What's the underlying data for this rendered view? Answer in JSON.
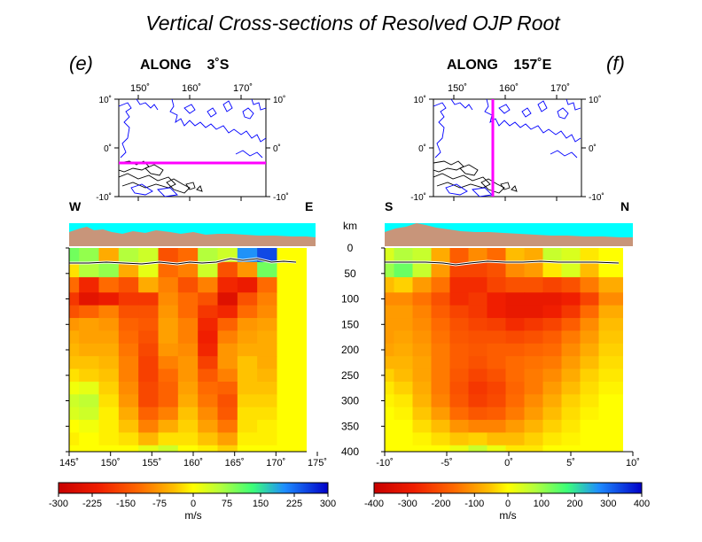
{
  "title": "Vertical Cross-sections of Resolved OJP Root",
  "panels": [
    {
      "letter": "(e)",
      "heading": "ALONG    3˚S",
      "inset": {
        "top_ticks": [
          "150˚",
          "160˚",
          "170˚"
        ],
        "left_ticks": [
          "10˚",
          "0˚",
          "-10˚"
        ],
        "right_ticks": [
          "10˚",
          "0˚",
          "-10˚"
        ],
        "profile_line": "horizontal",
        "line_color": "#ff00ff"
      },
      "side_left": "W",
      "side_right": "E",
      "bottom_ticks": [
        "145˚",
        "150˚",
        "155˚",
        "160˚",
        "165˚",
        "170˚",
        "175˚"
      ],
      "colorbar": {
        "ticks": [
          "-300",
          "-225",
          "-150",
          "-75",
          "0",
          "75",
          "150",
          "225",
          "300"
        ],
        "unit": "m/s"
      }
    },
    {
      "letter": "(f)",
      "heading": "ALONG    157˚E",
      "inset": {
        "top_ticks": [
          "150˚",
          "160˚",
          "170˚"
        ],
        "left_ticks": [
          "10˚",
          "0˚",
          "-10˚"
        ],
        "right_ticks": [
          "10˚",
          "0˚",
          "-10˚"
        ],
        "profile_line": "vertical",
        "line_color": "#ff00ff"
      },
      "side_left": "S",
      "side_right": "N",
      "bottom_ticks": [
        "-10˚",
        "-5˚",
        "0˚",
        "5˚",
        "10˚"
      ],
      "colorbar": {
        "ticks": [
          "-400",
          "-300",
          "-200",
          "-100",
          "0",
          "100",
          "200",
          "300",
          "400"
        ],
        "unit": "m/s"
      }
    }
  ],
  "depth_axis": {
    "unit": "km",
    "ticks": [
      "0",
      "50",
      "100",
      "150",
      "200",
      "250",
      "300",
      "350",
      "400"
    ]
  },
  "chart_data": [
    {
      "type": "heatmap",
      "name": "e",
      "x": [
        145,
        147.5,
        150,
        152.5,
        155,
        157.5,
        160,
        162.5,
        165,
        167.5,
        170,
        172.5
      ],
      "y": [
        15,
        40,
        75,
        100,
        125,
        150,
        175,
        200,
        225,
        250,
        275,
        300,
        325,
        350,
        375,
        400
      ],
      "xlim": [
        145,
        175
      ],
      "ylim": [
        0,
        400
      ],
      "clim": [
        -300,
        300
      ],
      "values": [
        [
          100,
          80,
          -60,
          60,
          40,
          -150,
          -120,
          60,
          40,
          200,
          250,
          0
        ],
        [
          -20,
          60,
          80,
          -60,
          20,
          -120,
          -100,
          40,
          -150,
          -80,
          100,
          0
        ],
        [
          -120,
          -200,
          -120,
          -150,
          -60,
          -100,
          -150,
          -100,
          -200,
          -220,
          -120,
          0
        ],
        [
          -180,
          -240,
          -220,
          -180,
          -180,
          -90,
          -120,
          -150,
          -250,
          -150,
          -100,
          0
        ],
        [
          -150,
          -130,
          -100,
          -150,
          -150,
          -80,
          -120,
          -180,
          -200,
          -120,
          -90,
          0
        ],
        [
          -80,
          -70,
          -80,
          -130,
          -140,
          -70,
          -100,
          -200,
          -130,
          -80,
          -70,
          0
        ],
        [
          -60,
          -70,
          -70,
          -120,
          -150,
          -70,
          -100,
          -210,
          -100,
          -70,
          -60,
          0
        ],
        [
          -50,
          -60,
          -60,
          -110,
          -160,
          -80,
          -90,
          -200,
          -80,
          -60,
          -60,
          0
        ],
        [
          -40,
          -40,
          -50,
          -100,
          -170,
          -100,
          -80,
          -170,
          -80,
          -40,
          -60,
          0
        ],
        [
          -20,
          -30,
          -40,
          -100,
          -170,
          -120,
          -80,
          -140,
          -100,
          -40,
          -50,
          0
        ],
        [
          10,
          20,
          -30,
          -90,
          -160,
          -130,
          -70,
          -120,
          -130,
          -40,
          -40,
          0
        ],
        [
          40,
          50,
          -20,
          -80,
          -160,
          -130,
          -60,
          -110,
          -150,
          -30,
          -30,
          0
        ],
        [
          30,
          40,
          -10,
          -60,
          -130,
          -100,
          -40,
          -90,
          -140,
          -20,
          -20,
          0
        ],
        [
          0,
          10,
          -10,
          -40,
          -100,
          -60,
          -30,
          -70,
          -110,
          -20,
          -10,
          0
        ],
        [
          -10,
          0,
          -10,
          -20,
          -50,
          -20,
          -20,
          -40,
          -70,
          -10,
          -10,
          0
        ],
        [
          0,
          0,
          0,
          0,
          20,
          40,
          0,
          -10,
          -30,
          0,
          0,
          0
        ]
      ]
    },
    {
      "type": "heatmap",
      "name": "f",
      "x": [
        -10,
        -8.5,
        -7,
        -5.5,
        -4,
        -2.5,
        -1,
        0.5,
        2,
        3.5,
        5,
        6.5,
        8
      ],
      "y": [
        15,
        40,
        75,
        100,
        125,
        150,
        175,
        200,
        225,
        250,
        275,
        300,
        325,
        350,
        375,
        400
      ],
      "xlim": [
        -10,
        10
      ],
      "ylim": [
        0,
        400
      ],
      "clim": [
        -400,
        400
      ],
      "values": [
        [
          40,
          80,
          60,
          -80,
          -180,
          -120,
          -160,
          -60,
          -80,
          60,
          40,
          -20,
          0
        ],
        [
          100,
          140,
          60,
          -100,
          -220,
          -220,
          -200,
          -120,
          -100,
          -20,
          40,
          -60,
          0
        ],
        [
          -60,
          -40,
          -100,
          -150,
          -260,
          -260,
          -220,
          -200,
          -200,
          -220,
          -200,
          -140,
          -80
        ],
        [
          -120,
          -120,
          -150,
          -200,
          -260,
          -240,
          -280,
          -300,
          -300,
          -300,
          -280,
          -220,
          -120
        ],
        [
          -100,
          -100,
          -130,
          -180,
          -220,
          -240,
          -280,
          -300,
          -300,
          -280,
          -240,
          -160,
          -80
        ],
        [
          -100,
          -100,
          -120,
          -160,
          -200,
          -220,
          -230,
          -260,
          -240,
          -220,
          -180,
          -120,
          -60
        ],
        [
          -100,
          -90,
          -110,
          -150,
          -190,
          -200,
          -200,
          -210,
          -200,
          -180,
          -140,
          -100,
          -50
        ],
        [
          -90,
          -80,
          -100,
          -140,
          -180,
          -190,
          -180,
          -180,
          -170,
          -160,
          -120,
          -80,
          -40
        ],
        [
          -70,
          -70,
          -90,
          -140,
          -180,
          -200,
          -180,
          -160,
          -150,
          -140,
          -100,
          -60,
          -30
        ],
        [
          -40,
          -60,
          -90,
          -140,
          -190,
          -220,
          -200,
          -160,
          -140,
          -120,
          -80,
          -40,
          -20
        ],
        [
          -20,
          -40,
          -80,
          -140,
          -200,
          -240,
          -220,
          -170,
          -140,
          -100,
          -60,
          -30,
          -10
        ],
        [
          -10,
          -20,
          -70,
          -130,
          -190,
          -230,
          -210,
          -160,
          -120,
          -80,
          -40,
          -20,
          0
        ],
        [
          0,
          -10,
          -50,
          -100,
          -160,
          -190,
          -180,
          -140,
          -100,
          -60,
          -30,
          -10,
          0
        ],
        [
          0,
          0,
          -30,
          -60,
          -110,
          -130,
          -130,
          -100,
          -70,
          -40,
          -20,
          0,
          0
        ],
        [
          0,
          0,
          -10,
          -30,
          -50,
          -40,
          -60,
          -60,
          -40,
          -20,
          -10,
          0,
          0
        ],
        [
          0,
          0,
          0,
          0,
          20,
          60,
          20,
          -20,
          -20,
          0,
          0,
          0,
          0
        ]
      ]
    }
  ]
}
